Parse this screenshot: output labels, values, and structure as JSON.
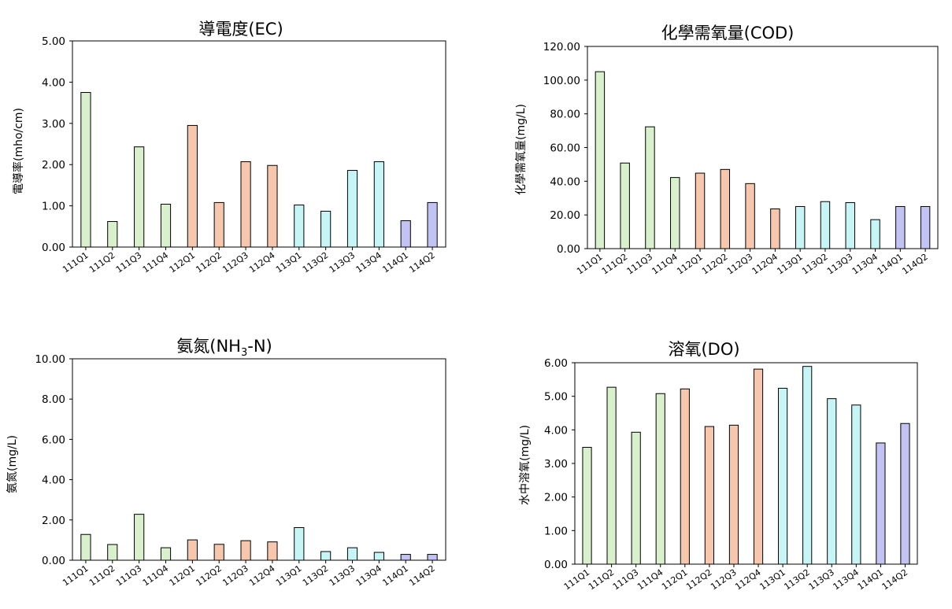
{
  "colors": {
    "green": "#d8f0cc",
    "orange": "#f7c7ad",
    "cyan": "#c7f5f5",
    "purple": "#c3c3f3",
    "stroke": "#000000"
  },
  "chart_data": [
    {
      "type": "bar",
      "title": "導電度(EC)",
      "ylabel": "電導率(mho/cm)",
      "categories": [
        "111Q1",
        "111Q2",
        "111Q3",
        "111Q4",
        "112Q1",
        "112Q2",
        "112Q3",
        "112Q4",
        "113Q1",
        "113Q2",
        "113Q3",
        "113Q4",
        "114Q1",
        "114Q2"
      ],
      "values": [
        3.75,
        0.62,
        2.43,
        1.04,
        2.95,
        1.08,
        2.07,
        1.98,
        1.02,
        0.87,
        1.86,
        2.07,
        0.64,
        1.08
      ],
      "bar_colors": [
        "green",
        "green",
        "green",
        "green",
        "orange",
        "orange",
        "orange",
        "orange",
        "cyan",
        "cyan",
        "cyan",
        "cyan",
        "purple",
        "purple"
      ],
      "ylim": [
        0,
        5
      ],
      "yticks": [
        "0.00",
        "1.00",
        "2.00",
        "3.00",
        "4.00",
        "5.00"
      ],
      "grid": false
    },
    {
      "type": "bar",
      "title": "化學需氧量(COD)",
      "ylabel": "化學需氧量(mg/L)",
      "categories": [
        "111Q1",
        "111Q2",
        "111Q3",
        "111Q4",
        "112Q1",
        "112Q2",
        "112Q3",
        "112Q4",
        "113Q1",
        "113Q2",
        "113Q3",
        "113Q4",
        "114Q1",
        "114Q2"
      ],
      "values": [
        105.0,
        50.8,
        72.3,
        42.2,
        44.8,
        47.0,
        38.6,
        23.6,
        25.0,
        27.9,
        27.3,
        17.2,
        25.0,
        25.0
      ],
      "bar_colors": [
        "green",
        "green",
        "green",
        "green",
        "orange",
        "orange",
        "orange",
        "orange",
        "cyan",
        "cyan",
        "cyan",
        "cyan",
        "purple",
        "purple"
      ],
      "ylim": [
        0,
        120
      ],
      "yticks": [
        "0.00",
        "20.00",
        "40.00",
        "60.00",
        "80.00",
        "100.00",
        "120.00"
      ],
      "grid": false
    },
    {
      "type": "bar",
      "title": "氨氮(NH3-N)",
      "title_main": "氨氮(NH",
      "title_sub": "3",
      "title_end": "-N)",
      "ylabel": "氨氮(mg/L)",
      "categories": [
        "111Q1",
        "111Q2",
        "111Q3",
        "111Q4",
        "112Q1",
        "112Q2",
        "112Q3",
        "112Q4",
        "113Q1",
        "113Q2",
        "113Q3",
        "113Q4",
        "114Q1",
        "114Q2"
      ],
      "values": [
        1.28,
        0.78,
        2.28,
        0.62,
        1.01,
        0.79,
        0.97,
        0.91,
        1.62,
        0.43,
        0.62,
        0.39,
        0.29,
        0.29
      ],
      "bar_colors": [
        "green",
        "green",
        "green",
        "green",
        "orange",
        "orange",
        "orange",
        "orange",
        "cyan",
        "cyan",
        "cyan",
        "cyan",
        "purple",
        "purple"
      ],
      "ylim": [
        0,
        10
      ],
      "yticks": [
        "0.00",
        "2.00",
        "4.00",
        "6.00",
        "8.00",
        "10.00"
      ],
      "grid": false
    },
    {
      "type": "bar",
      "title": "溶氧(DO)",
      "ylabel": "水中溶氧(mg/L)",
      "categories": [
        "111Q1",
        "111Q2",
        "111Q3",
        "111Q4",
        "112Q1",
        "112Q2",
        "112Q3",
        "112Q4",
        "113Q1",
        "113Q2",
        "113Q3",
        "113Q4",
        "114Q1",
        "114Q2"
      ],
      "values": [
        3.48,
        5.27,
        3.93,
        5.08,
        5.22,
        4.1,
        4.14,
        5.81,
        5.24,
        5.89,
        4.93,
        4.74,
        3.61,
        4.19
      ],
      "bar_colors": [
        "green",
        "green",
        "green",
        "green",
        "orange",
        "orange",
        "orange",
        "orange",
        "cyan",
        "cyan",
        "cyan",
        "cyan",
        "purple",
        "purple"
      ],
      "ylim": [
        0,
        6
      ],
      "yticks": [
        "0.00",
        "1.00",
        "2.00",
        "3.00",
        "4.00",
        "5.00",
        "6.00"
      ],
      "grid": false
    }
  ]
}
